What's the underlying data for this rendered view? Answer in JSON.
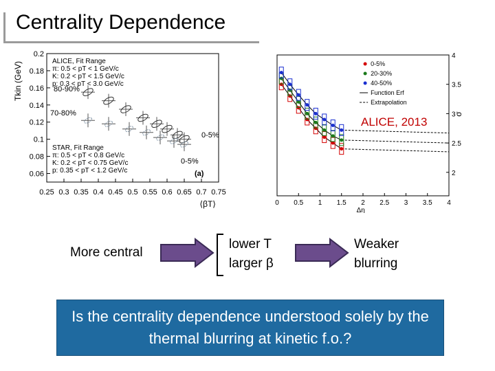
{
  "slide": {
    "title": "Centrality Dependence",
    "alice_label": "ALICE, 2013",
    "flow": {
      "step1": "More central",
      "step2_line1": "lower T",
      "step2_line2": "larger β",
      "step3_line1": "Weaker",
      "step3_line2": "blurring"
    },
    "question": "Is the centrality dependence understood solely by the thermal blurring at kinetic f.o.?"
  },
  "colors": {
    "question_bg": "#1f6aa0",
    "arrow_fill": "#6b4c8c",
    "alice_label": "#c00000"
  },
  "chart_data": [
    {
      "type": "scatter",
      "title": "",
      "xlabel": "⟨βT⟩",
      "ylabel": "Tkin (GeV)",
      "xlim": [
        0.25,
        0.75
      ],
      "ylim": [
        0.05,
        0.2
      ],
      "x_ticks": [
        "0.25",
        "0.3",
        "0.35",
        "0.4",
        "0.45",
        "0.5",
        "0.55",
        "0.6",
        "0.65",
        "0.7",
        "0.75"
      ],
      "y_ticks": [
        "0.06",
        "0.08",
        "0.1",
        "0.12",
        "0.14",
        "0.16",
        "0.18",
        "0.2"
      ],
      "legend_alice": [
        "ALICE, Fit Range",
        "π: 0.5 < pT < 1 GeV/c",
        "K: 0.2 < pT < 1.5 GeV/c",
        "p: 0.3 < pT < 3.0 GeV/c"
      ],
      "legend_star": [
        "STAR, Fit Range",
        "π: 0.5 < pT < 0.8 GeV/c",
        "K: 0.2 < pT < 0.75 GeV/c",
        "p: 0.35 < pT < 1.2 GeV/c"
      ],
      "annotations": [
        "80-90%",
        "70-80%",
        "0-5%",
        "0-5%",
        "(a)"
      ],
      "series": [
        {
          "x": [
            0.37,
            0.43,
            0.48,
            0.53,
            0.57,
            0.6,
            0.63,
            0.65
          ],
          "y": [
            0.155,
            0.145,
            0.135,
            0.125,
            0.118,
            0.112,
            0.105,
            0.1
          ]
        },
        {
          "x": [
            0.37,
            0.43,
            0.49,
            0.54,
            0.58,
            0.62,
            0.65
          ],
          "y": [
            0.122,
            0.118,
            0.112,
            0.108,
            0.102,
            0.098,
            0.094
          ]
        }
      ]
    },
    {
      "type": "line",
      "title": "",
      "xlabel": "Δη",
      "ylabel": "σ",
      "xlim": [
        0,
        4
      ],
      "ylim": [
        1.6,
        4
      ],
      "x_ticks": [
        "0",
        "0.5",
        "1",
        "1.5",
        "2",
        "2.5",
        "3",
        "3.5",
        "4"
      ],
      "y_ticks": [
        "2",
        "2.5",
        "3",
        "3.5",
        "4"
      ],
      "legend": [
        "0-5%",
        "20-30%",
        "40-50%",
        "Function Erf",
        "Extrapolation"
      ],
      "series": [
        {
          "name": "0-5%",
          "color": "#d40000",
          "x": [
            0.1,
            0.3,
            0.5,
            0.7,
            0.9,
            1.1,
            1.3,
            1.5
          ],
          "y": [
            3.5,
            3.3,
            3.1,
            2.9,
            2.75,
            2.6,
            2.5,
            2.4
          ]
        },
        {
          "name": "20-30%",
          "color": "#1b7a1b",
          "x": [
            0.1,
            0.3,
            0.5,
            0.7,
            0.9,
            1.1,
            1.3,
            1.5
          ],
          "y": [
            3.6,
            3.4,
            3.2,
            3.0,
            2.85,
            2.72,
            2.62,
            2.55
          ]
        },
        {
          "name": "40-50%",
          "color": "#1a2fd0",
          "x": [
            0.1,
            0.3,
            0.5,
            0.7,
            0.9,
            1.1,
            1.3,
            1.5
          ],
          "y": [
            3.7,
            3.5,
            3.32,
            3.15,
            3.0,
            2.9,
            2.8,
            2.72
          ]
        }
      ]
    }
  ]
}
